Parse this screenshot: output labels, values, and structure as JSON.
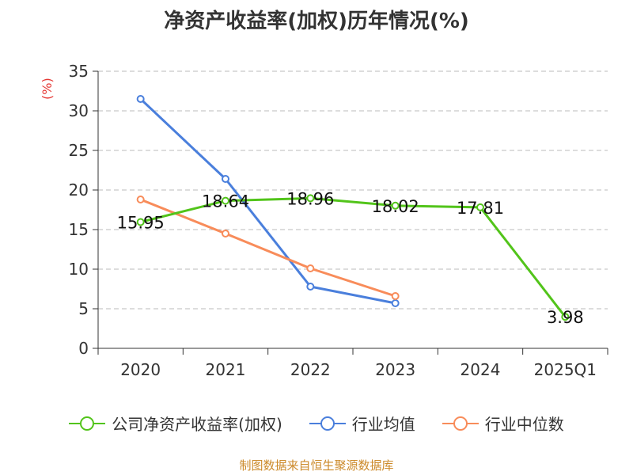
{
  "title": "净资产收益率(加权)历年情况(%)",
  "source_note": "制图数据来自恒生聚源数据库",
  "colors": {
    "company": "#52c41a",
    "industry_avg": "#4a7fdc",
    "industry_median": "#f88c5a",
    "grid": "#bbbbbb",
    "axis": "#333333",
    "ylabel": "#e53935"
  },
  "chart_data": {
    "type": "line",
    "title": "净资产收益率(加权)历年情况(%)",
    "xlabel": "",
    "ylabel": "(%)",
    "ylim": [
      0,
      35
    ],
    "yticks": [
      0,
      5,
      10,
      15,
      20,
      25,
      30,
      35
    ],
    "categories": [
      "2020",
      "2021",
      "2022",
      "2023",
      "2024",
      "2025Q1"
    ],
    "grid": true,
    "legend_position": "bottom",
    "series": [
      {
        "name": "公司净资产收益率(加权)",
        "values": [
          15.95,
          18.64,
          18.96,
          18.02,
          17.81,
          3.98
        ],
        "labels": [
          "15.95",
          "18.64",
          "18.96",
          "18.02",
          "17.81",
          "3.98"
        ],
        "color": "#52c41a"
      },
      {
        "name": "行业均值",
        "values": [
          31.5,
          21.4,
          7.8,
          5.7,
          null,
          null
        ],
        "color": "#4a7fdc"
      },
      {
        "name": "行业中位数",
        "values": [
          18.8,
          14.5,
          10.1,
          6.6,
          null,
          null
        ],
        "color": "#f88c5a"
      }
    ]
  }
}
